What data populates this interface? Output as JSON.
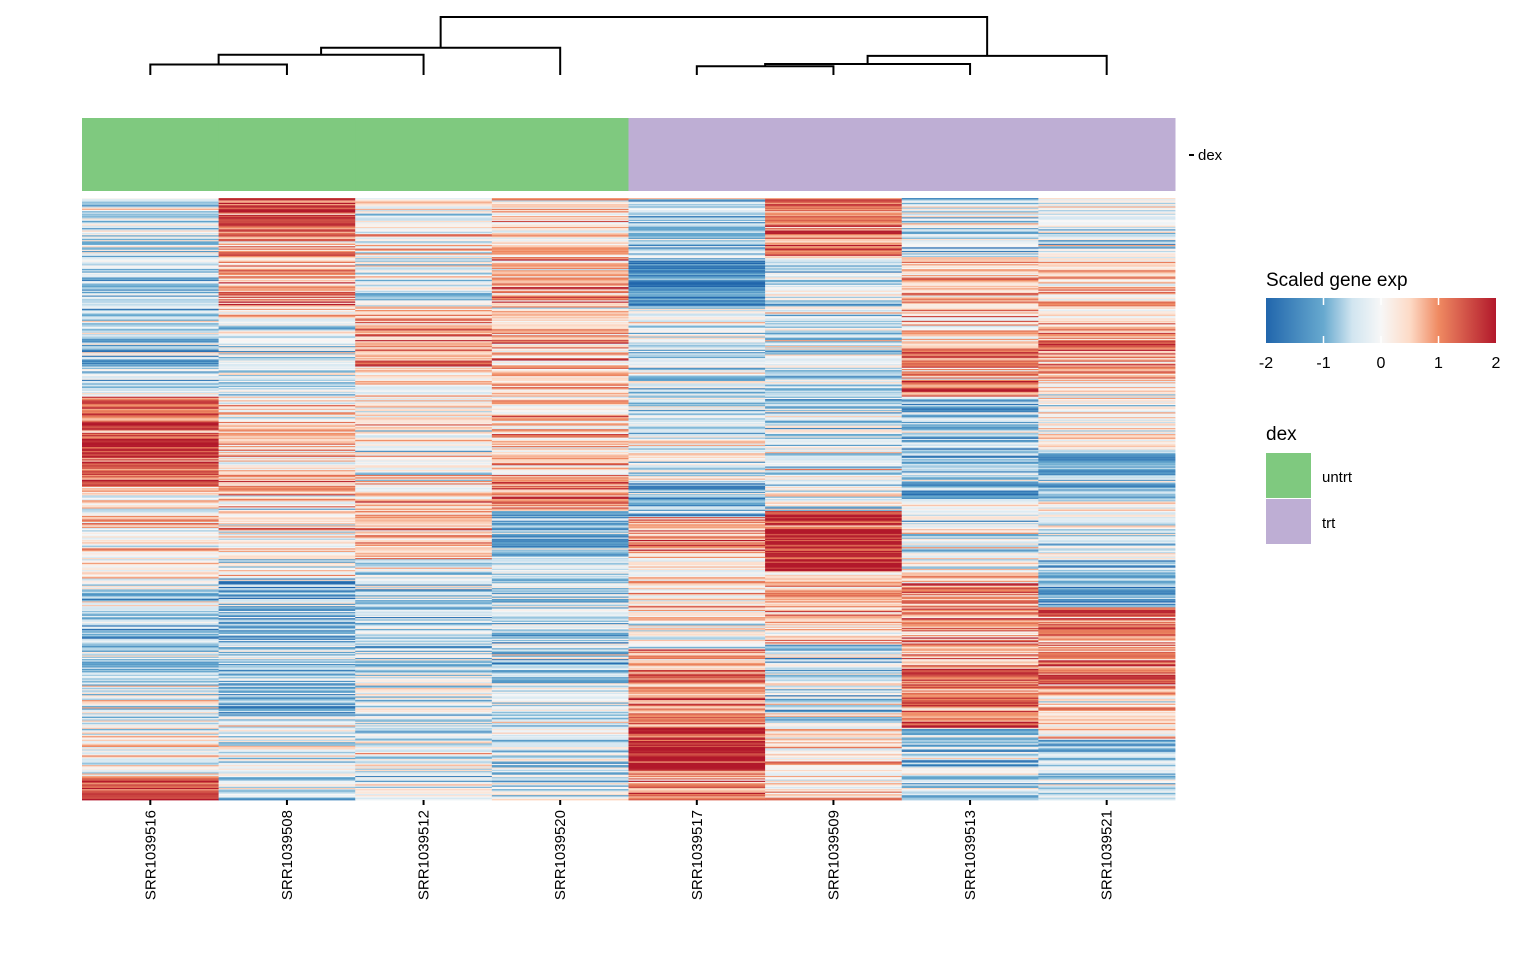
{
  "chart_data": {
    "type": "heatmap",
    "title": "",
    "xlabel": "",
    "ylabel": "",
    "columns": [
      "SRR1039516",
      "SRR1039508",
      "SRR1039512",
      "SRR1039520",
      "SRR1039517",
      "SRR1039509",
      "SRR1039513",
      "SRR1039521"
    ],
    "column_annotation": {
      "name": "dex",
      "values": [
        "untrt",
        "untrt",
        "untrt",
        "untrt",
        "trt",
        "trt",
        "trt",
        "trt"
      ]
    },
    "row_count_estimate": 500,
    "row_labels_shown": false,
    "color_scale": {
      "title": "Scaled gene exp",
      "min": -2,
      "max": 2,
      "ticks": [
        "-2",
        "-1",
        "0",
        "1",
        "2"
      ],
      "stops": [
        {
          "value": -2,
          "color": "#2166ac"
        },
        {
          "value": -1,
          "color": "#67a9cf"
        },
        {
          "value": -0.5,
          "color": "#d1e5f0"
        },
        {
          "value": 0,
          "color": "#f7f7f7"
        },
        {
          "value": 0.5,
          "color": "#fddbc7"
        },
        {
          "value": 1,
          "color": "#ef8a62"
        },
        {
          "value": 2,
          "color": "#b2182b"
        }
      ]
    },
    "column_profiles_note": "Approximate mean scaled expression per row segment (top to bottom, fractions of row count), read visually from the heatmap",
    "column_profiles": [
      {
        "column": "SRR1039516",
        "segments": [
          [
            0.0,
            0.33,
            -0.5
          ],
          [
            0.33,
            0.48,
            1.3
          ],
          [
            0.48,
            0.65,
            0.2
          ],
          [
            0.65,
            0.81,
            -0.7
          ],
          [
            0.81,
            0.96,
            -0.1
          ],
          [
            0.96,
            1.0,
            1.5
          ]
        ]
      },
      {
        "column": "SRR1039508",
        "segments": [
          [
            0.0,
            0.06,
            1.6
          ],
          [
            0.06,
            0.2,
            0.8
          ],
          [
            0.2,
            0.33,
            -0.3
          ],
          [
            0.33,
            0.5,
            0.5
          ],
          [
            0.5,
            0.63,
            0.1
          ],
          [
            0.63,
            0.86,
            -0.8
          ],
          [
            0.86,
            1.0,
            -0.3
          ]
        ]
      },
      {
        "column": "SRR1039512",
        "segments": [
          [
            0.0,
            0.1,
            0.3
          ],
          [
            0.1,
            0.18,
            -0.3
          ],
          [
            0.18,
            0.28,
            1.0
          ],
          [
            0.28,
            0.5,
            0.2
          ],
          [
            0.5,
            0.6,
            0.6
          ],
          [
            0.6,
            0.8,
            -0.6
          ],
          [
            0.8,
            1.0,
            -0.2
          ]
        ]
      },
      {
        "column": "SRR1039520",
        "segments": [
          [
            0.0,
            0.08,
            0.3
          ],
          [
            0.08,
            0.33,
            0.7
          ],
          [
            0.33,
            0.46,
            0.5
          ],
          [
            0.46,
            0.52,
            1.0
          ],
          [
            0.52,
            0.6,
            -1.0
          ],
          [
            0.6,
            0.82,
            -0.5
          ],
          [
            0.82,
            1.0,
            -0.4
          ]
        ]
      },
      {
        "column": "SRR1039517",
        "segments": [
          [
            0.0,
            0.1,
            -0.6
          ],
          [
            0.1,
            0.18,
            -1.5
          ],
          [
            0.18,
            0.4,
            -0.3
          ],
          [
            0.4,
            0.47,
            0.0
          ],
          [
            0.47,
            0.53,
            -1.0
          ],
          [
            0.53,
            0.6,
            0.8
          ],
          [
            0.6,
            0.75,
            0.2
          ],
          [
            0.75,
            0.88,
            1.0
          ],
          [
            0.88,
            0.95,
            1.9
          ],
          [
            0.95,
            1.0,
            1.0
          ]
        ]
      },
      {
        "column": "SRR1039509",
        "segments": [
          [
            0.0,
            0.1,
            1.2
          ],
          [
            0.1,
            0.28,
            -0.3
          ],
          [
            0.28,
            0.4,
            -0.5
          ],
          [
            0.4,
            0.52,
            -0.2
          ],
          [
            0.52,
            0.55,
            1.5
          ],
          [
            0.55,
            0.62,
            2.0
          ],
          [
            0.62,
            0.74,
            0.6
          ],
          [
            0.74,
            0.88,
            -0.4
          ],
          [
            0.88,
            1.0,
            0.3
          ]
        ]
      },
      {
        "column": "SRR1039513",
        "segments": [
          [
            0.0,
            0.1,
            -0.4
          ],
          [
            0.1,
            0.25,
            0.5
          ],
          [
            0.25,
            0.33,
            1.0
          ],
          [
            0.33,
            0.5,
            -0.8
          ],
          [
            0.5,
            0.62,
            -0.2
          ],
          [
            0.62,
            0.78,
            0.9
          ],
          [
            0.78,
            0.88,
            1.3
          ],
          [
            0.88,
            1.0,
            -0.7
          ]
        ]
      },
      {
        "column": "SRR1039521",
        "segments": [
          [
            0.0,
            0.1,
            -0.2
          ],
          [
            0.1,
            0.2,
            0.6
          ],
          [
            0.2,
            0.3,
            0.9
          ],
          [
            0.3,
            0.42,
            0.2
          ],
          [
            0.42,
            0.5,
            -0.9
          ],
          [
            0.5,
            0.6,
            -0.2
          ],
          [
            0.6,
            0.68,
            -1.0
          ],
          [
            0.68,
            0.82,
            1.2
          ],
          [
            0.82,
            0.9,
            0.4
          ],
          [
            0.9,
            1.0,
            -0.6
          ]
        ]
      }
    ],
    "dendrogram": {
      "order": [
        "SRR1039516",
        "SRR1039508",
        "SRR1039512",
        "SRR1039520",
        "SRR1039517",
        "SRR1039509",
        "SRR1039513",
        "SRR1039521"
      ],
      "merges": [
        {
          "left": "SRR1039516",
          "right": "SRR1039508",
          "height": 0.18
        },
        {
          "left": "m1",
          "right": "SRR1039512",
          "height": 0.35
        },
        {
          "left": "m2",
          "right": "SRR1039520",
          "height": 0.47
        },
        {
          "left": "SRR1039517",
          "right": "SRR1039509",
          "height": 0.15
        },
        {
          "left": "m4",
          "right": "SRR1039513",
          "height": 0.19
        },
        {
          "left": "m5",
          "right": "SRR1039521",
          "height": 0.33
        },
        {
          "left": "m3",
          "right": "m6",
          "height": 1.0
        }
      ]
    },
    "legends": [
      {
        "title": "Scaled gene exp",
        "type": "continuous",
        "ticks": [
          "-2",
          "-1",
          "0",
          "1",
          "2"
        ],
        "placement": "right"
      },
      {
        "title": "dex",
        "type": "categorical",
        "placement": "right",
        "entries": [
          {
            "label": "untrt",
            "color": "#7fc97f"
          },
          {
            "label": "trt",
            "color": "#beaed4"
          }
        ]
      }
    ],
    "annotation_colors": {
      "untrt": "#7fc97f",
      "trt": "#beaed4"
    }
  },
  "annotation_row_label": "dex",
  "legend_expr": {
    "title": "Scaled gene exp",
    "ticks": [
      "-2",
      "-1",
      "0",
      "1",
      "2"
    ]
  },
  "legend_dex": {
    "title": "dex",
    "entries": [
      "untrt",
      "trt"
    ]
  }
}
